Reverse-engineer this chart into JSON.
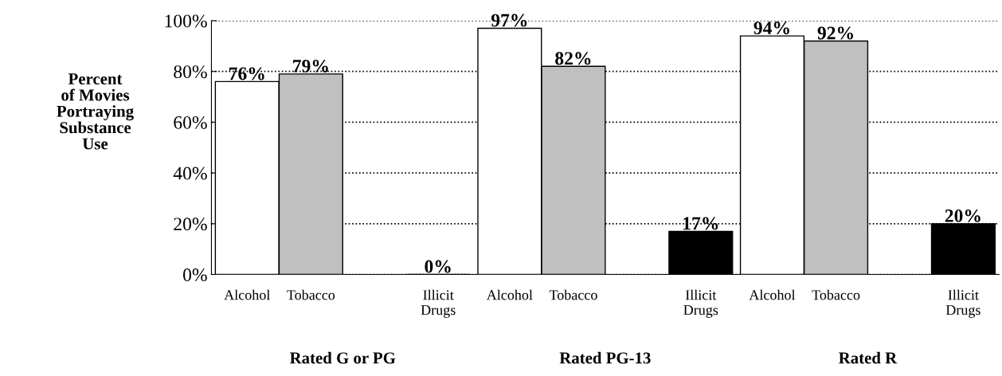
{
  "chart_data": {
    "type": "bar",
    "categories": [
      "Rated G or PG",
      "Rated PG-13",
      "Rated R"
    ],
    "ylabel": "Percent\nof Movies\nPortraying\nSubstance\nUse",
    "series": [
      {
        "name": "Alcohol",
        "color": "#ffffff",
        "values": [
          76,
          97,
          94
        ]
      },
      {
        "name": "Tobacco",
        "color": "#c0c0c0",
        "values": [
          79,
          82,
          92
        ]
      },
      {
        "name": "Illicit Drugs",
        "color": "#000000",
        "values": [
          0,
          17,
          20
        ]
      }
    ],
    "ylim": [
      0,
      100
    ],
    "yticks": [
      {
        "value": 0,
        "label": "0%"
      },
      {
        "value": 20,
        "label": "20%"
      },
      {
        "value": 40,
        "label": "40%"
      },
      {
        "value": 60,
        "label": "60%"
      },
      {
        "value": 80,
        "label": "80%"
      },
      {
        "value": 100,
        "label": "100%"
      }
    ],
    "value_labels": [
      [
        "76%",
        "97%",
        "94%"
      ],
      [
        "79%",
        "82%",
        "92%"
      ],
      [
        "0%",
        "17%",
        "20%"
      ]
    ],
    "grid": "y",
    "line_style": "dotted",
    "legend": false
  }
}
